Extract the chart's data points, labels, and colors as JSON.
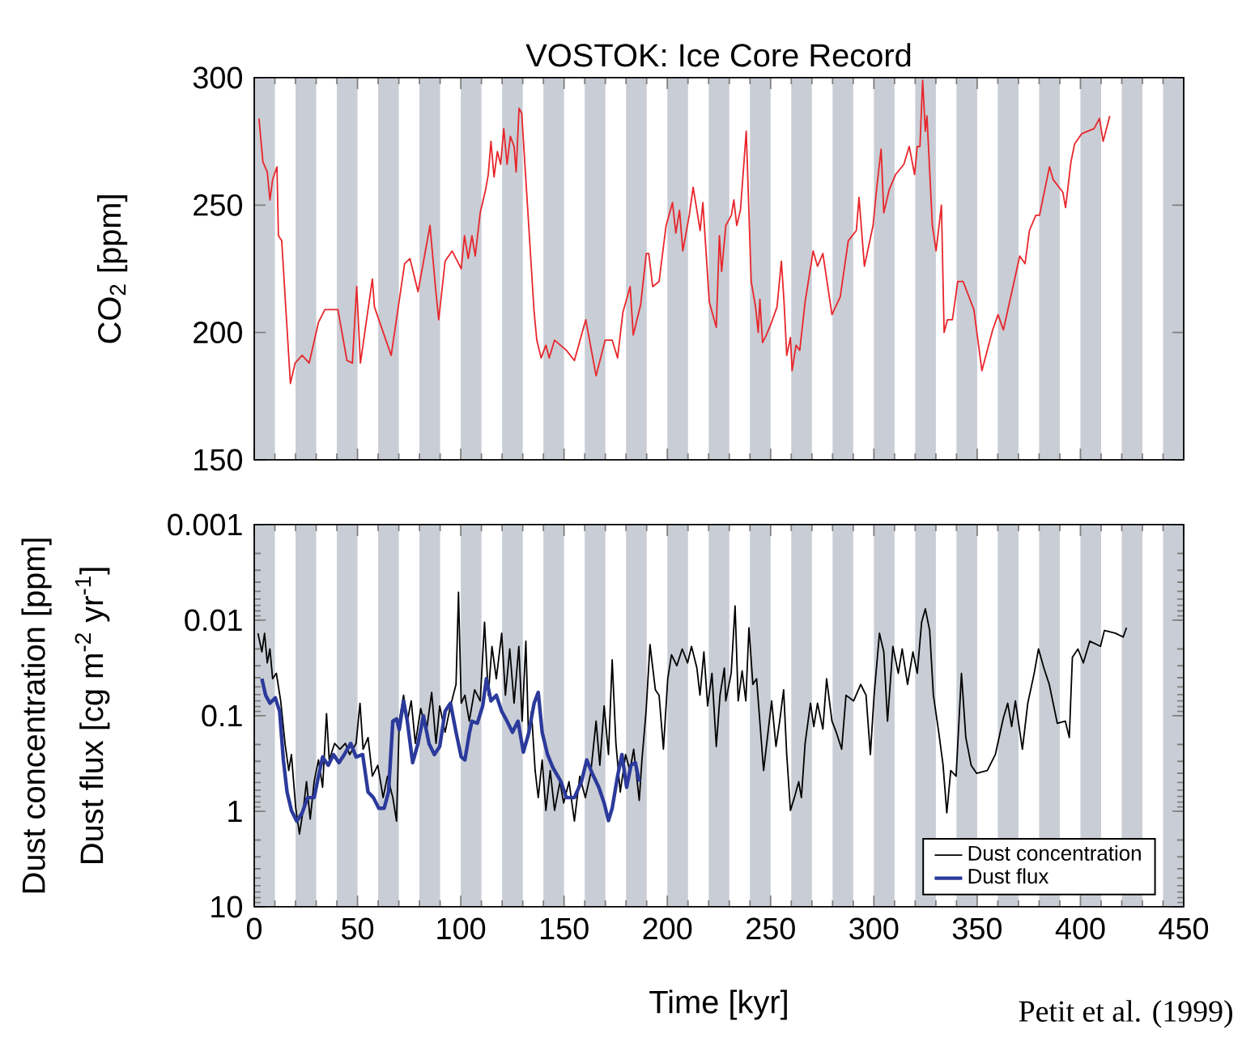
{
  "chart_data": [
    {
      "type": "line",
      "title": "VOSTOK: Ice Core Record",
      "ylabel": "CO$_{2}$ [ppm]",
      "xlim": [
        0,
        450
      ],
      "xticks": [
        0,
        50,
        100,
        150,
        200,
        250,
        300,
        350,
        400,
        450
      ],
      "ylim": [
        150,
        300
      ],
      "yticks": [
        150,
        200,
        250,
        300
      ],
      "tick_labels": "y",
      "bands": [
        {
          "axis": "x",
          "from": 0,
          "to": 10,
          "color": "#c9cdd5"
        },
        {
          "axis": "x",
          "from": 20,
          "to": 30,
          "color": "#c9cdd5"
        },
        {
          "axis": "x",
          "from": 40,
          "to": 50,
          "color": "#c9cdd5"
        },
        {
          "axis": "x",
          "from": 60,
          "to": 70,
          "color": "#c9cdd5"
        },
        {
          "axis": "x",
          "from": 80,
          "to": 90,
          "color": "#c9cdd5"
        },
        {
          "axis": "x",
          "from": 100,
          "to": 110,
          "color": "#c9cdd5"
        },
        {
          "axis": "x",
          "from": 120,
          "to": 130,
          "color": "#c9cdd5"
        },
        {
          "axis": "x",
          "from": 140,
          "to": 150,
          "color": "#c9cdd5"
        },
        {
          "axis": "x",
          "from": 160,
          "to": 170,
          "color": "#c9cdd5"
        },
        {
          "axis": "x",
          "from": 180,
          "to": 190,
          "color": "#c9cdd5"
        },
        {
          "axis": "x",
          "from": 200,
          "to": 210,
          "color": "#c9cdd5"
        },
        {
          "axis": "x",
          "from": 220,
          "to": 230,
          "color": "#c9cdd5"
        },
        {
          "axis": "x",
          "from": 240,
          "to": 250,
          "color": "#c9cdd5"
        },
        {
          "axis": "x",
          "from": 260,
          "to": 270,
          "color": "#c9cdd5"
        },
        {
          "axis": "x",
          "from": 280,
          "to": 290,
          "color": "#c9cdd5"
        },
        {
          "axis": "x",
          "from": 300,
          "to": 310,
          "color": "#c9cdd5"
        },
        {
          "axis": "x",
          "from": 320,
          "to": 330,
          "color": "#c9cdd5"
        },
        {
          "axis": "x",
          "from": 340,
          "to": 350,
          "color": "#c9cdd5"
        },
        {
          "axis": "x",
          "from": 360,
          "to": 370,
          "color": "#c9cdd5"
        },
        {
          "axis": "x",
          "from": 380,
          "to": 390,
          "color": "#c9cdd5"
        },
        {
          "axis": "x",
          "from": 400,
          "to": 410,
          "color": "#c9cdd5"
        },
        {
          "axis": "x",
          "from": 420,
          "to": 430,
          "color": "#c9cdd5"
        },
        {
          "axis": "x",
          "from": 440,
          "to": 450,
          "color": "#c9cdd5"
        }
      ],
      "series": [
        {
          "color": "#e8262b",
          "x": [
            2.3,
            4.2,
            6.3,
            7.6,
            8.9,
            11,
            11.7,
            13.3,
            17.5,
            19.8,
            23.2,
            26.6,
            31.1,
            34.2,
            40.5,
            44.9,
            47.5,
            49.6,
            51.4,
            57.2,
            58.2,
            66.3,
            72.8,
            75.4,
            79.3,
            85.1,
            87.7,
            89.3,
            92.4,
            95.8,
            100.2,
            101.8,
            103.6,
            105.4,
            107,
            109.4,
            112,
            113.3,
            114.6,
            116.1,
            117.7,
            119.3,
            120.8,
            122.4,
            124,
            125.8,
            126.8,
            128.2,
            129.5,
            135.5,
            136.8,
            138.9,
            141.2,
            142.8,
            145.4,
            151.1,
            155,
            160.5,
            165.5,
            169.9,
            173.3,
            175.9,
            178.5,
            182,
            183.5,
            187.1,
            189.8,
            191,
            192.9,
            196,
            199.4,
            202.5,
            204.1,
            205.9,
            207.5,
            210.6,
            212.5,
            215.9,
            217.2,
            220.3,
            223.7,
            225.2,
            226.3,
            228.3,
            231,
            232.2,
            233.6,
            235.4,
            238.2,
            240.6,
            242.7,
            244,
            244.8,
            246.1,
            247.9,
            250,
            253.1,
            255.2,
            256.5,
            257.8,
            259.6,
            260.4,
            262.3,
            264.1,
            266.7,
            270.6,
            272.7,
            275.3,
            279.7,
            283.7,
            287.6,
            291.5,
            292.8,
            295.4,
            299.6,
            301.4,
            303.5,
            304.8,
            307.4,
            310.5,
            314.5,
            317.1,
            319.7,
            321,
            322.3,
            323.6,
            324.9,
            325.7,
            328.3,
            330.1,
            332.7,
            334,
            335.6,
            338,
            340.6,
            343.2,
            348.4,
            352.3,
            357.5,
            360.1,
            362.7,
            370.6,
            373.2,
            375.3,
            378.4,
            380.2,
            385,
            386.8,
            391.5,
            392.8,
            395.4,
            397.2,
            400.6,
            406.6,
            409.2,
            411,
            414.2
          ],
          "values": [
            284,
            267,
            263,
            252,
            260,
            265,
            238,
            236,
            180,
            188,
            191,
            188,
            204,
            209,
            209,
            189,
            188,
            218,
            188,
            221,
            210,
            191,
            227,
            229,
            216,
            242,
            218,
            205,
            228,
            232,
            225,
            238,
            229,
            238,
            230,
            247,
            256,
            262,
            275,
            261,
            271,
            266,
            280,
            266,
            277,
            273,
            263,
            288,
            286,
            208,
            197,
            190,
            195,
            190,
            197,
            193,
            189,
            205,
            183,
            197,
            197,
            190,
            208,
            218,
            199,
            211,
            231,
            231,
            218,
            220,
            242,
            251,
            239,
            248,
            232,
            246,
            257,
            240,
            251,
            212,
            202,
            238,
            224,
            242,
            246,
            252,
            242,
            248,
            279,
            220,
            210,
            200,
            213,
            196,
            199,
            203,
            210,
            228,
            212,
            191,
            198,
            185,
            195,
            193,
            212,
            232,
            226,
            231,
            207,
            214,
            236,
            240,
            253,
            226,
            242,
            257,
            272,
            247,
            256,
            262,
            266,
            273,
            262,
            273,
            273,
            299,
            279,
            285,
            242,
            232,
            250,
            200,
            205,
            205,
            220,
            220,
            209,
            185,
            201,
            207,
            201,
            230,
            227,
            240,
            246,
            246,
            265,
            260,
            255,
            249,
            267,
            274,
            278,
            280,
            284,
            275,
            285
          ]
        }
      ]
    },
    {
      "type": "line",
      "xlabel": "Time [kyr]",
      "ylabel": "Dust concentration [ppm]",
      "annotations": [
        "Dust flux [cg m$^{-2}$ yr$^{-1}$]",
        "Petit et al. (1999)"
      ],
      "xlim": [
        0,
        450
      ],
      "xticks": [
        0,
        50,
        100,
        150,
        200,
        250,
        300,
        350,
        400,
        450
      ],
      "ylim": [
        10,
        0.001
      ],
      "yticks": [
        0.001,
        0.01,
        0.1,
        1,
        10
      ],
      "log": "y",
      "legend": "bottom right",
      "bands": [
        {
          "axis": "x",
          "from": 0,
          "to": 10,
          "color": "#c9cdd5"
        },
        {
          "axis": "x",
          "from": 20,
          "to": 30,
          "color": "#c9cdd5"
        },
        {
          "axis": "x",
          "from": 40,
          "to": 50,
          "color": "#c9cdd5"
        },
        {
          "axis": "x",
          "from": 60,
          "to": 70,
          "color": "#c9cdd5"
        },
        {
          "axis": "x",
          "from": 80,
          "to": 90,
          "color": "#c9cdd5"
        },
        {
          "axis": "x",
          "from": 100,
          "to": 110,
          "color": "#c9cdd5"
        },
        {
          "axis": "x",
          "from": 120,
          "to": 130,
          "color": "#c9cdd5"
        },
        {
          "axis": "x",
          "from": 140,
          "to": 150,
          "color": "#c9cdd5"
        },
        {
          "axis": "x",
          "from": 160,
          "to": 170,
          "color": "#c9cdd5"
        },
        {
          "axis": "x",
          "from": 180,
          "to": 190,
          "color": "#c9cdd5"
        },
        {
          "axis": "x",
          "from": 200,
          "to": 210,
          "color": "#c9cdd5"
        },
        {
          "axis": "x",
          "from": 220,
          "to": 230,
          "color": "#c9cdd5"
        },
        {
          "axis": "x",
          "from": 240,
          "to": 250,
          "color": "#c9cdd5"
        },
        {
          "axis": "x",
          "from": 260,
          "to": 270,
          "color": "#c9cdd5"
        },
        {
          "axis": "x",
          "from": 280,
          "to": 290,
          "color": "#c9cdd5"
        },
        {
          "axis": "x",
          "from": 300,
          "to": 310,
          "color": "#c9cdd5"
        },
        {
          "axis": "x",
          "from": 320,
          "to": 330,
          "color": "#c9cdd5"
        },
        {
          "axis": "x",
          "from": 340,
          "to": 350,
          "color": "#c9cdd5"
        },
        {
          "axis": "x",
          "from": 360,
          "to": 370,
          "color": "#c9cdd5"
        },
        {
          "axis": "x",
          "from": 380,
          "to": 390,
          "color": "#c9cdd5"
        },
        {
          "axis": "x",
          "from": 400,
          "to": 410,
          "color": "#c9cdd5"
        },
        {
          "axis": "x",
          "from": 420,
          "to": 430,
          "color": "#c9cdd5"
        },
        {
          "axis": "x",
          "from": 440,
          "to": 450,
          "color": "#c9cdd5"
        }
      ],
      "series": [
        {
          "name": "Dust concentration",
          "color": "#000000",
          "x": [
            1.8,
            3.7,
            5,
            6.3,
            7.6,
            8.9,
            10.7,
            12.8,
            14.9,
            16.7,
            18,
            20.1,
            21.9,
            23.8,
            25.3,
            27.1,
            29,
            31.1,
            33.1,
            35,
            36.3,
            38.9,
            41.5,
            44.1,
            46.2,
            49.3,
            51.2,
            52.7,
            55.1,
            57.2,
            59.8,
            62.4,
            64.5,
            67.1,
            68.9,
            70.2,
            72.3,
            74.1,
            76,
            78,
            80.6,
            83.3,
            85.9,
            88,
            89.8,
            92.4,
            95,
            97.7,
            98.9,
            100.2,
            102,
            104.1,
            106.7,
            109.4,
            111.5,
            113.3,
            115.1,
            117.2,
            119.8,
            121.6,
            123.7,
            125.8,
            128.1,
            129.7,
            131.5,
            132.8,
            134.2,
            136,
            137.5,
            139.4,
            141.2,
            143.3,
            145.4,
            148,
            149.8,
            152.4,
            155,
            157.6,
            160.3,
            162.9,
            165.5,
            167.3,
            169.4,
            171.5,
            173.3,
            175.1,
            177.2,
            179.8,
            181.9,
            183.7,
            186.4,
            187.7,
            189.7,
            191.6,
            194.2,
            196,
            198.1,
            200.2,
            202,
            204.6,
            207.2,
            209.8,
            211.7,
            214.3,
            215.8,
            217.7,
            219.5,
            221.6,
            223.7,
            225.5,
            227.6,
            228.3,
            230.9,
            232.8,
            234.3,
            236.2,
            238,
            239.5,
            241.4,
            243.2,
            246.6,
            250.5,
            252.6,
            254.4,
            256.3,
            257.8,
            259.6,
            261.5,
            263.6,
            264.9,
            266.7,
            269.3,
            270.9,
            272.7,
            275.3,
            277.1,
            279.7,
            281.8,
            284.4,
            286.5,
            290.2,
            293.6,
            296.2,
            298.3,
            300.1,
            302.7,
            304.8,
            306.6,
            309.2,
            311.8,
            313.7,
            316.3,
            318.9,
            321,
            323.1,
            324.9,
            327,
            328.8,
            331.4,
            333.5,
            335.3,
            337.2,
            339.8,
            342.4,
            344.5,
            347.1,
            349.7,
            354.9,
            358.8,
            362.7,
            364.8,
            366.7,
            368.5,
            371.9,
            374.5,
            377.6,
            379.7,
            382.3,
            384.9,
            388.8,
            392.7,
            394.6,
            396.1,
            398.8,
            401.4,
            404.5,
            409.7,
            411.6,
            417,
            420.7,
            422.3
          ],
          "values": [
            0.0137,
            0.0215,
            0.0137,
            0.028,
            0.02,
            0.041,
            0.036,
            0.07,
            0.195,
            0.375,
            0.255,
            0.93,
            1.73,
            0.93,
            0.49,
            1.21,
            0.49,
            0.29,
            0.56,
            0.095,
            0.29,
            0.195,
            0.224,
            0.195,
            0.255,
            0.195,
            0.074,
            0.224,
            0.169,
            0.43,
            0.33,
            0.72,
            0.43,
            0.72,
            1.27,
            0.114,
            0.061,
            0.114,
            0.07,
            0.195,
            0.084,
            0.149,
            0.057,
            0.195,
            0.079,
            0.149,
            0.079,
            0.047,
            0.0051,
            0.074,
            0.061,
            0.114,
            0.0535,
            0.07,
            0.0105,
            0.061,
            0.0188,
            0.041,
            0.0137,
            0.061,
            0.02,
            0.074,
            0.0188,
            0.114,
            0.0166,
            0.169,
            0.09,
            0.375,
            0.72,
            0.29,
            0.98,
            0.375,
            0.98,
            0.49,
            0.82,
            0.49,
            1.27,
            0.43,
            0.72,
            0.4,
            0.114,
            0.33,
            0.079,
            0.255,
            0.026,
            0.195,
            0.63,
            0.255,
            0.375,
            0.224,
            0.77,
            0.29,
            0.09,
            0.018,
            0.0535,
            0.061,
            0.224,
            0.041,
            0.023,
            0.03,
            0.02,
            0.028,
            0.0188,
            0.0317,
            0.061,
            0.0215,
            0.079,
            0.036,
            0.21,
            0.061,
            0.0317,
            0.07,
            0.036,
            0.0071,
            0.07,
            0.034,
            0.07,
            0.012,
            0.047,
            0.041,
            0.375,
            0.07,
            0.21,
            0.114,
            0.0535,
            0.255,
            0.98,
            0.72,
            0.49,
            0.72,
            0.195,
            0.074,
            0.13,
            0.074,
            0.138,
            0.041,
            0.114,
            0.149,
            0.224,
            0.061,
            0.07,
            0.047,
            0.061,
            0.255,
            0.061,
            0.0137,
            0.0215,
            0.114,
            0.0188,
            0.036,
            0.02,
            0.047,
            0.0215,
            0.036,
            0.0105,
            0.0076,
            0.0128,
            0.061,
            0.149,
            0.33,
            1.04,
            0.375,
            0.43,
            0.036,
            0.169,
            0.33,
            0.4,
            0.375,
            0.255,
            0.105,
            0.074,
            0.13,
            0.07,
            0.224,
            0.074,
            0.036,
            0.02,
            0.0317,
            0.047,
            0.12,
            0.114,
            0.169,
            0.0244,
            0.02,
            0.028,
            0.0166,
            0.0188,
            0.0128,
            0.0137,
            0.015,
            0.012
          ]
        },
        {
          "name": "Dust flux",
          "color": "#2b3a9b",
          "x": [
            3.7,
            5.5,
            7.6,
            10.2,
            12.3,
            14.1,
            15.9,
            18,
            20.6,
            23.2,
            25.8,
            29,
            31.1,
            33.1,
            35.8,
            38.4,
            41,
            43.6,
            46.7,
            49.3,
            52.5,
            55.1,
            57.7,
            60.3,
            62.9,
            65,
            67.1,
            68.9,
            70.2,
            72.3,
            74.1,
            76.7,
            79.3,
            81.9,
            84.6,
            87.2,
            89.8,
            92.4,
            95,
            97.7,
            100.2,
            102,
            104.1,
            105.4,
            108,
            110.6,
            112.4,
            114.6,
            117.2,
            119.8,
            122.4,
            125,
            127.7,
            130.3,
            132.8,
            135.5,
            137.5,
            139.4,
            142,
            144.6,
            148.5,
            151.1,
            155,
            158.4,
            161,
            163.6,
            166.8,
            169.4,
            171.5,
            173.3,
            175.9,
            178,
            180.3,
            182.4,
            184.5,
            186.4
          ],
          "values": [
            0.041,
            0.061,
            0.074,
            0.065,
            0.09,
            0.29,
            0.63,
            0.98,
            1.27,
            1.04,
            0.72,
            0.72,
            0.43,
            0.27,
            0.33,
            0.255,
            0.31,
            0.255,
            0.195,
            0.27,
            0.255,
            0.63,
            0.72,
            0.93,
            0.93,
            0.63,
            0.114,
            0.108,
            0.14,
            0.07,
            0.114,
            0.31,
            0.195,
            0.1,
            0.195,
            0.255,
            0.21,
            0.09,
            0.074,
            0.149,
            0.27,
            0.29,
            0.154,
            0.114,
            0.12,
            0.079,
            0.041,
            0.07,
            0.061,
            0.09,
            0.114,
            0.149,
            0.114,
            0.24,
            0.154,
            0.074,
            0.057,
            0.149,
            0.255,
            0.35,
            0.49,
            0.72,
            0.72,
            0.49,
            0.29,
            0.4,
            0.56,
            0.82,
            1.25,
            0.93,
            0.43,
            0.255,
            0.56,
            0.33,
            0.31,
            0.49
          ]
        }
      ]
    }
  ]
}
